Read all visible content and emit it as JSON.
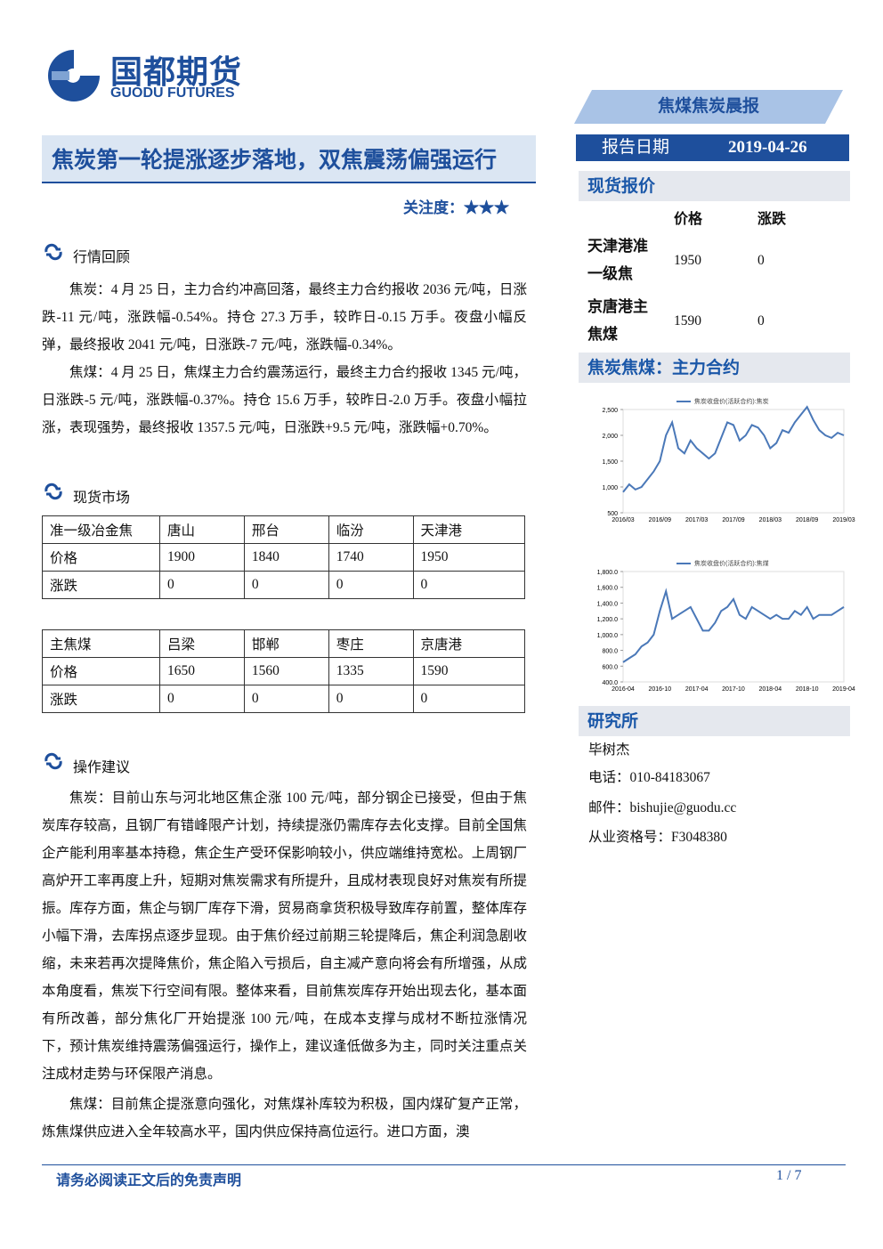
{
  "header": {
    "logo_cn": "国都期货",
    "logo_en": "GUODU FUTURES",
    "banner": "焦煤焦炭晨报",
    "date_label": "报告日期",
    "date": "2019-04-26"
  },
  "title": "焦炭第一轮提涨逐步落地，双焦震荡偏强运行",
  "attention": "关注度：★★★",
  "review": {
    "heading": "行情回顾",
    "paragraphs": [
      "焦炭：4 月 25 日，主力合约冲高回落，最终主力合约报收 2036 元/吨，日涨跌-11 元/吨，涨跌幅-0.54%。持仓 27.3 万手，较昨日-0.15 万手。夜盘小幅反弹，最终报收 2041 元/吨，日涨跌-7 元/吨，涨跌幅-0.34%。",
      "焦煤：4 月 25 日，焦煤主力合约震荡运行，最终主力合约报收 1345 元/吨，日涨跌-5 元/吨，涨跌幅-0.37%。持仓 15.6 万手，较昨日-2.0 万手。夜盘小幅拉涨，表现强势，最终报收 1357.5 元/吨，日涨跌+9.5 元/吨，涨跌幅+0.70%。"
    ]
  },
  "spot": {
    "heading": "现货市场",
    "tables": [
      {
        "rows": [
          [
            "准一级冶金焦",
            "唐山",
            "邢台",
            "临汾",
            "天津港"
          ],
          [
            "价格",
            "1900",
            "1840",
            "1740",
            "1950"
          ],
          [
            "涨跌",
            "0",
            "0",
            "0",
            "0"
          ]
        ]
      },
      {
        "rows": [
          [
            "主焦煤",
            "吕梁",
            "邯郸",
            "枣庄",
            "京唐港"
          ],
          [
            "价格",
            "1650",
            "1560",
            "1335",
            "1590"
          ],
          [
            "涨跌",
            "0",
            "0",
            "0",
            "0"
          ]
        ]
      }
    ]
  },
  "advice": {
    "heading": "操作建议",
    "paragraphs": [
      "焦炭：目前山东与河北地区焦企涨 100 元/吨，部分钢企已接受，但由于焦炭库存较高，且钢厂有错峰限产计划，持续提涨仍需库存去化支撑。目前全国焦企产能利用率基本持稳，焦企生产受环保影响较小，供应端维持宽松。上周钢厂高炉开工率再度上升，短期对焦炭需求有所提升，且成材表现良好对焦炭有所提振。库存方面，焦企与钢厂库存下滑，贸易商拿货积极导致库存前置，整体库存小幅下滑，去库拐点逐步显现。由于焦价经过前期三轮提降后，焦企利润急剧收缩，未来若再次提降焦价，焦企陷入亏损后，自主减产意向将会有所增强，从成本角度看，焦炭下行空间有限。整体来看，目前焦炭库存开始出现去化，基本面有所改善，部分焦化厂开始提涨 100 元/吨，在成本支撑与成材不断拉涨情况下，预计焦炭维持震荡偏强运行，操作上，建议逢低做多为主，同时关注重点关注成材走势与环保限产消息。",
      "焦煤：目前焦企提涨意向强化，对焦煤补库较为积极，国内煤矿复产正常，炼焦煤供应进入全年较高水平，国内供应保持高位运行。进口方面，澳"
    ]
  },
  "sidebar": {
    "quote_heading": "现货报价",
    "quote_table": {
      "header": [
        "价格",
        "涨跌"
      ],
      "rows": [
        [
          "天津港准一级焦",
          "1950",
          "0"
        ],
        [
          "京唐港主焦煤",
          "1590",
          "0"
        ]
      ]
    },
    "chart_heading": "焦炭焦煤：主力合约",
    "research": {
      "heading": "研究所",
      "lines": [
        "毕树杰",
        "电话：010-84183067",
        "邮件：bishujie@guodu.cc",
        "从业资格号：F3048380"
      ]
    }
  },
  "charts": [
    {
      "type": "line",
      "series": [
        {
          "name": "焦炭收盘价(活跃合约):焦炭",
          "color": "#4a78b8",
          "values": [
            900,
            1050,
            950,
            1000,
            1150,
            1300,
            1500,
            2000,
            2250,
            1750,
            1650,
            1900,
            1750,
            1650,
            1550,
            1650,
            1950,
            2250,
            2200,
            1900,
            2000,
            2200,
            2150,
            2000,
            1750,
            1850,
            2100,
            2050,
            2250,
            2400,
            2550,
            2300,
            2100,
            2000,
            1950,
            2050,
            2000
          ]
        }
      ],
      "xticks": [
        "2016/03",
        "2016/09",
        "2017/03",
        "2017/09",
        "2018/03",
        "2018/09",
        "2019/03"
      ],
      "ylim": [
        500,
        2500
      ],
      "yticks": [
        {
          "value": 500,
          "label": "500"
        },
        {
          "value": 1000,
          "label": "1,000"
        },
        {
          "value": 1500,
          "label": "1,500"
        },
        {
          "value": 2000,
          "label": "2,000"
        },
        {
          "value": 2500,
          "label": "2,500"
        }
      ]
    },
    {
      "type": "line",
      "series": [
        {
          "name": "焦炭收盘价(活跃合约):焦煤",
          "color": "#4a78b8",
          "values": [
            650,
            700,
            750,
            850,
            900,
            1000,
            1300,
            1550,
            1200,
            1250,
            1300,
            1350,
            1200,
            1050,
            1050,
            1150,
            1300,
            1350,
            1450,
            1250,
            1200,
            1350,
            1300,
            1250,
            1200,
            1250,
            1200,
            1200,
            1300,
            1250,
            1350,
            1200,
            1250,
            1250,
            1250,
            1300,
            1350
          ]
        }
      ],
      "xticks": [
        "2016-04",
        "2016-10",
        "2017-04",
        "2017-10",
        "2018-04",
        "2018-10",
        "2019-04"
      ],
      "ylim": [
        400,
        1800
      ],
      "yticks": [
        {
          "value": 400,
          "label": "400.0"
        },
        {
          "value": 600,
          "label": "600.0"
        },
        {
          "value": 800,
          "label": "800.0"
        },
        {
          "value": 1000,
          "label": "1,000.0"
        },
        {
          "value": 1200,
          "label": "1,200.0"
        },
        {
          "value": 1400,
          "label": "1,400.0"
        },
        {
          "value": 1600,
          "label": "1,600.0"
        },
        {
          "value": 1800,
          "label": "1,800.0"
        }
      ]
    }
  ],
  "footer": {
    "disclaimer": "请务必阅读正文后的免责声明",
    "page": "1 / 7"
  }
}
